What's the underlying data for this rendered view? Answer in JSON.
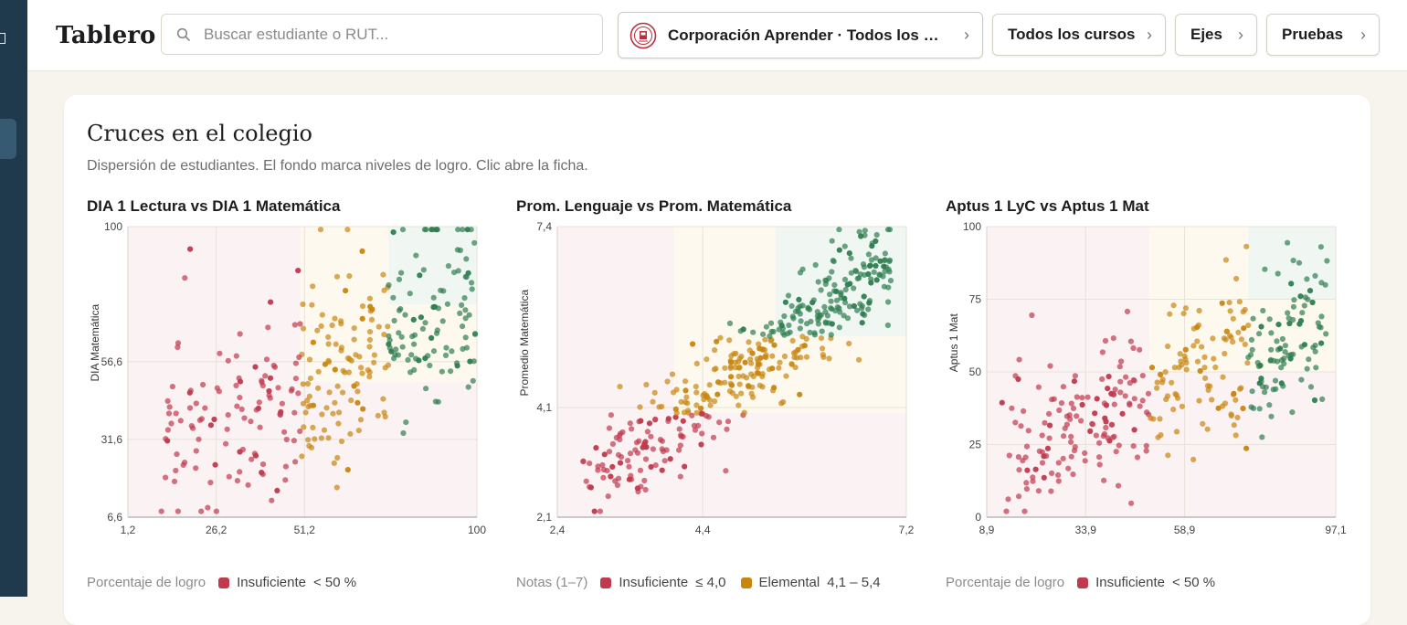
{
  "colors": {
    "insuficiente": "#c0394d",
    "elemental": "#c8860f",
    "adecuado": "#2e7d4f",
    "bg_insuficiente": "#fbf2f3",
    "bg_elemental": "#fdf9ef",
    "bg_adecuado": "#f0f7f3"
  },
  "header": {
    "title": "Tablero",
    "search_placeholder": "Buscar estudiante o RUT...",
    "org_label": "Corporación Aprender · Todos los establecimientos",
    "org_label_display": "Corporación Aprender · Todos los e...",
    "cursos_label": "Todos los cursos",
    "ejes_label": "Ejes",
    "pruebas_label": "Pruebas"
  },
  "card": {
    "title": "Cruces en el colegio",
    "subtitle": "Dispersión de estudiantes. El fondo marca niveles de logro. Clic abre la ficha."
  },
  "panels": [
    {
      "title": "DIA 1 Lectura vs DIA 1 Matemática",
      "legend_caption": "Porcentaje de logro",
      "legend_items": [
        {
          "label": "Insuficiente",
          "range": "< 50 %",
          "color_key": "insuficiente"
        }
      ]
    },
    {
      "title": "Prom. Lenguaje vs Prom. Matemática",
      "legend_caption": "Notas (1–7)",
      "legend_items": [
        {
          "label": "Insuficiente",
          "range": "≤ 4,0",
          "color_key": "insuficiente"
        },
        {
          "label": "Elemental",
          "range": "4,1 – 5,4",
          "color_key": "elemental"
        }
      ]
    },
    {
      "title": "Aptus 1 LyC vs Aptus 1 Mat",
      "legend_caption": "Porcentaje de logro",
      "legend_items": [
        {
          "label": "Insuficiente",
          "range": "< 50 %",
          "color_key": "insuficiente"
        }
      ]
    }
  ],
  "chart_data": [
    {
      "type": "scatter",
      "title": "DIA 1 Lectura vs DIA 1 Matemática",
      "xlabel": "",
      "ylabel": "DIA Matemática",
      "xlim": [
        1.2,
        100
      ],
      "ylim": [
        6.6,
        100
      ],
      "x_ticks": [
        "1,2",
        "26,2",
        "51,2",
        "100"
      ],
      "x_tick_values": [
        1.2,
        26.2,
        51.2,
        100
      ],
      "y_ticks": [
        "6,6",
        "31,6",
        "56,6",
        "100"
      ],
      "y_tick_values": [
        6.6,
        31.6,
        56.6,
        100
      ],
      "zones": {
        "x": [
          50,
          75
        ],
        "y": [
          50,
          75
        ]
      },
      "color_by": "x",
      "seed": 11,
      "n_points": 330,
      "relation": {
        "slope": 0.55,
        "intercept": 22,
        "noise": 17
      },
      "x_range": [
        8,
        100
      ],
      "grid": true
    },
    {
      "type": "scatter",
      "title": "Prom. Lenguaje vs Prom. Matemática",
      "xlabel": "",
      "ylabel": "Promedio Matemática",
      "xlim": [
        2.4,
        7.2
      ],
      "ylim": [
        2.1,
        7.4
      ],
      "x_ticks": [
        "2,4",
        "4,4",
        "7,2"
      ],
      "x_tick_values": [
        2.4,
        4.4,
        7.2
      ],
      "y_ticks": [
        "2,1",
        "4,1",
        "7,4"
      ],
      "y_tick_values": [
        2.1,
        4.1,
        7.4
      ],
      "zones": {
        "x": [
          4.0,
          5.4
        ],
        "y": [
          4.0,
          5.4
        ]
      },
      "color_by": "y",
      "seed": 23,
      "n_points": 420,
      "relation": {
        "slope": 0.95,
        "intercept": 0.1,
        "noise": 0.45
      },
      "x_range": [
        2.7,
        7.0
      ],
      "grid": true
    },
    {
      "type": "scatter",
      "title": "Aptus 1 LyC vs Aptus 1 Mat",
      "xlabel": "",
      "ylabel": "Aptus 1 Mat",
      "xlim": [
        8.9,
        97.1
      ],
      "ylim": [
        0,
        100
      ],
      "x_ticks": [
        "8,9",
        "33,9",
        "58,9",
        "97,1"
      ],
      "x_tick_values": [
        8.9,
        33.9,
        58.9,
        97.1
      ],
      "y_ticks": [
        "0",
        "25",
        "50",
        "75",
        "100"
      ],
      "y_tick_values": [
        0,
        25,
        50,
        75,
        100
      ],
      "zones": {
        "x": [
          50,
          75
        ],
        "y": [
          50,
          75
        ]
      },
      "color_by": "x",
      "seed": 37,
      "n_points": 340,
      "relation": {
        "slope": 0.5,
        "intercept": 17,
        "noise": 14
      },
      "x_range": [
        12,
        95
      ],
      "grid": true
    }
  ]
}
